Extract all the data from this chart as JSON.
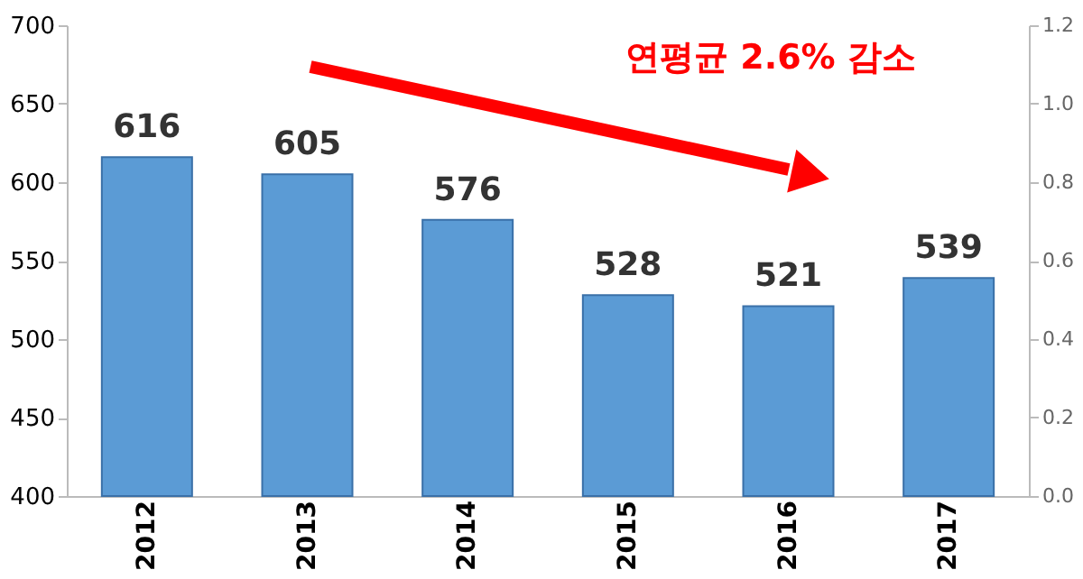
{
  "chart_data": {
    "type": "bar",
    "categories": [
      "2012",
      "2013",
      "2014",
      "2015",
      "2016",
      "2017"
    ],
    "series": [
      {
        "color": "#5b9bd5",
        "values": [
          616,
          605,
          576,
          528,
          521,
          539
        ]
      }
    ],
    "ylim": [
      400,
      700
    ],
    "yticks": [
      400,
      450,
      500,
      550,
      600,
      650,
      700
    ],
    "y2lim": [
      0,
      1.2
    ],
    "y2ticks": [
      {
        "value": 0,
        "label": "0.0"
      },
      {
        "value": 0.2,
        "label": "0.2"
      },
      {
        "value": 0.4,
        "label": "0.4"
      },
      {
        "value": 0.6,
        "label": "0.6"
      },
      {
        "value": 0.8,
        "label": "0.8"
      },
      {
        "value": 1.0,
        "label": "1.0"
      },
      {
        "value": 1.2,
        "label": "1.2"
      }
    ],
    "data_labels": true,
    "grid": false,
    "annotations": [
      "연평균 2.6% 감소"
    ]
  }
}
